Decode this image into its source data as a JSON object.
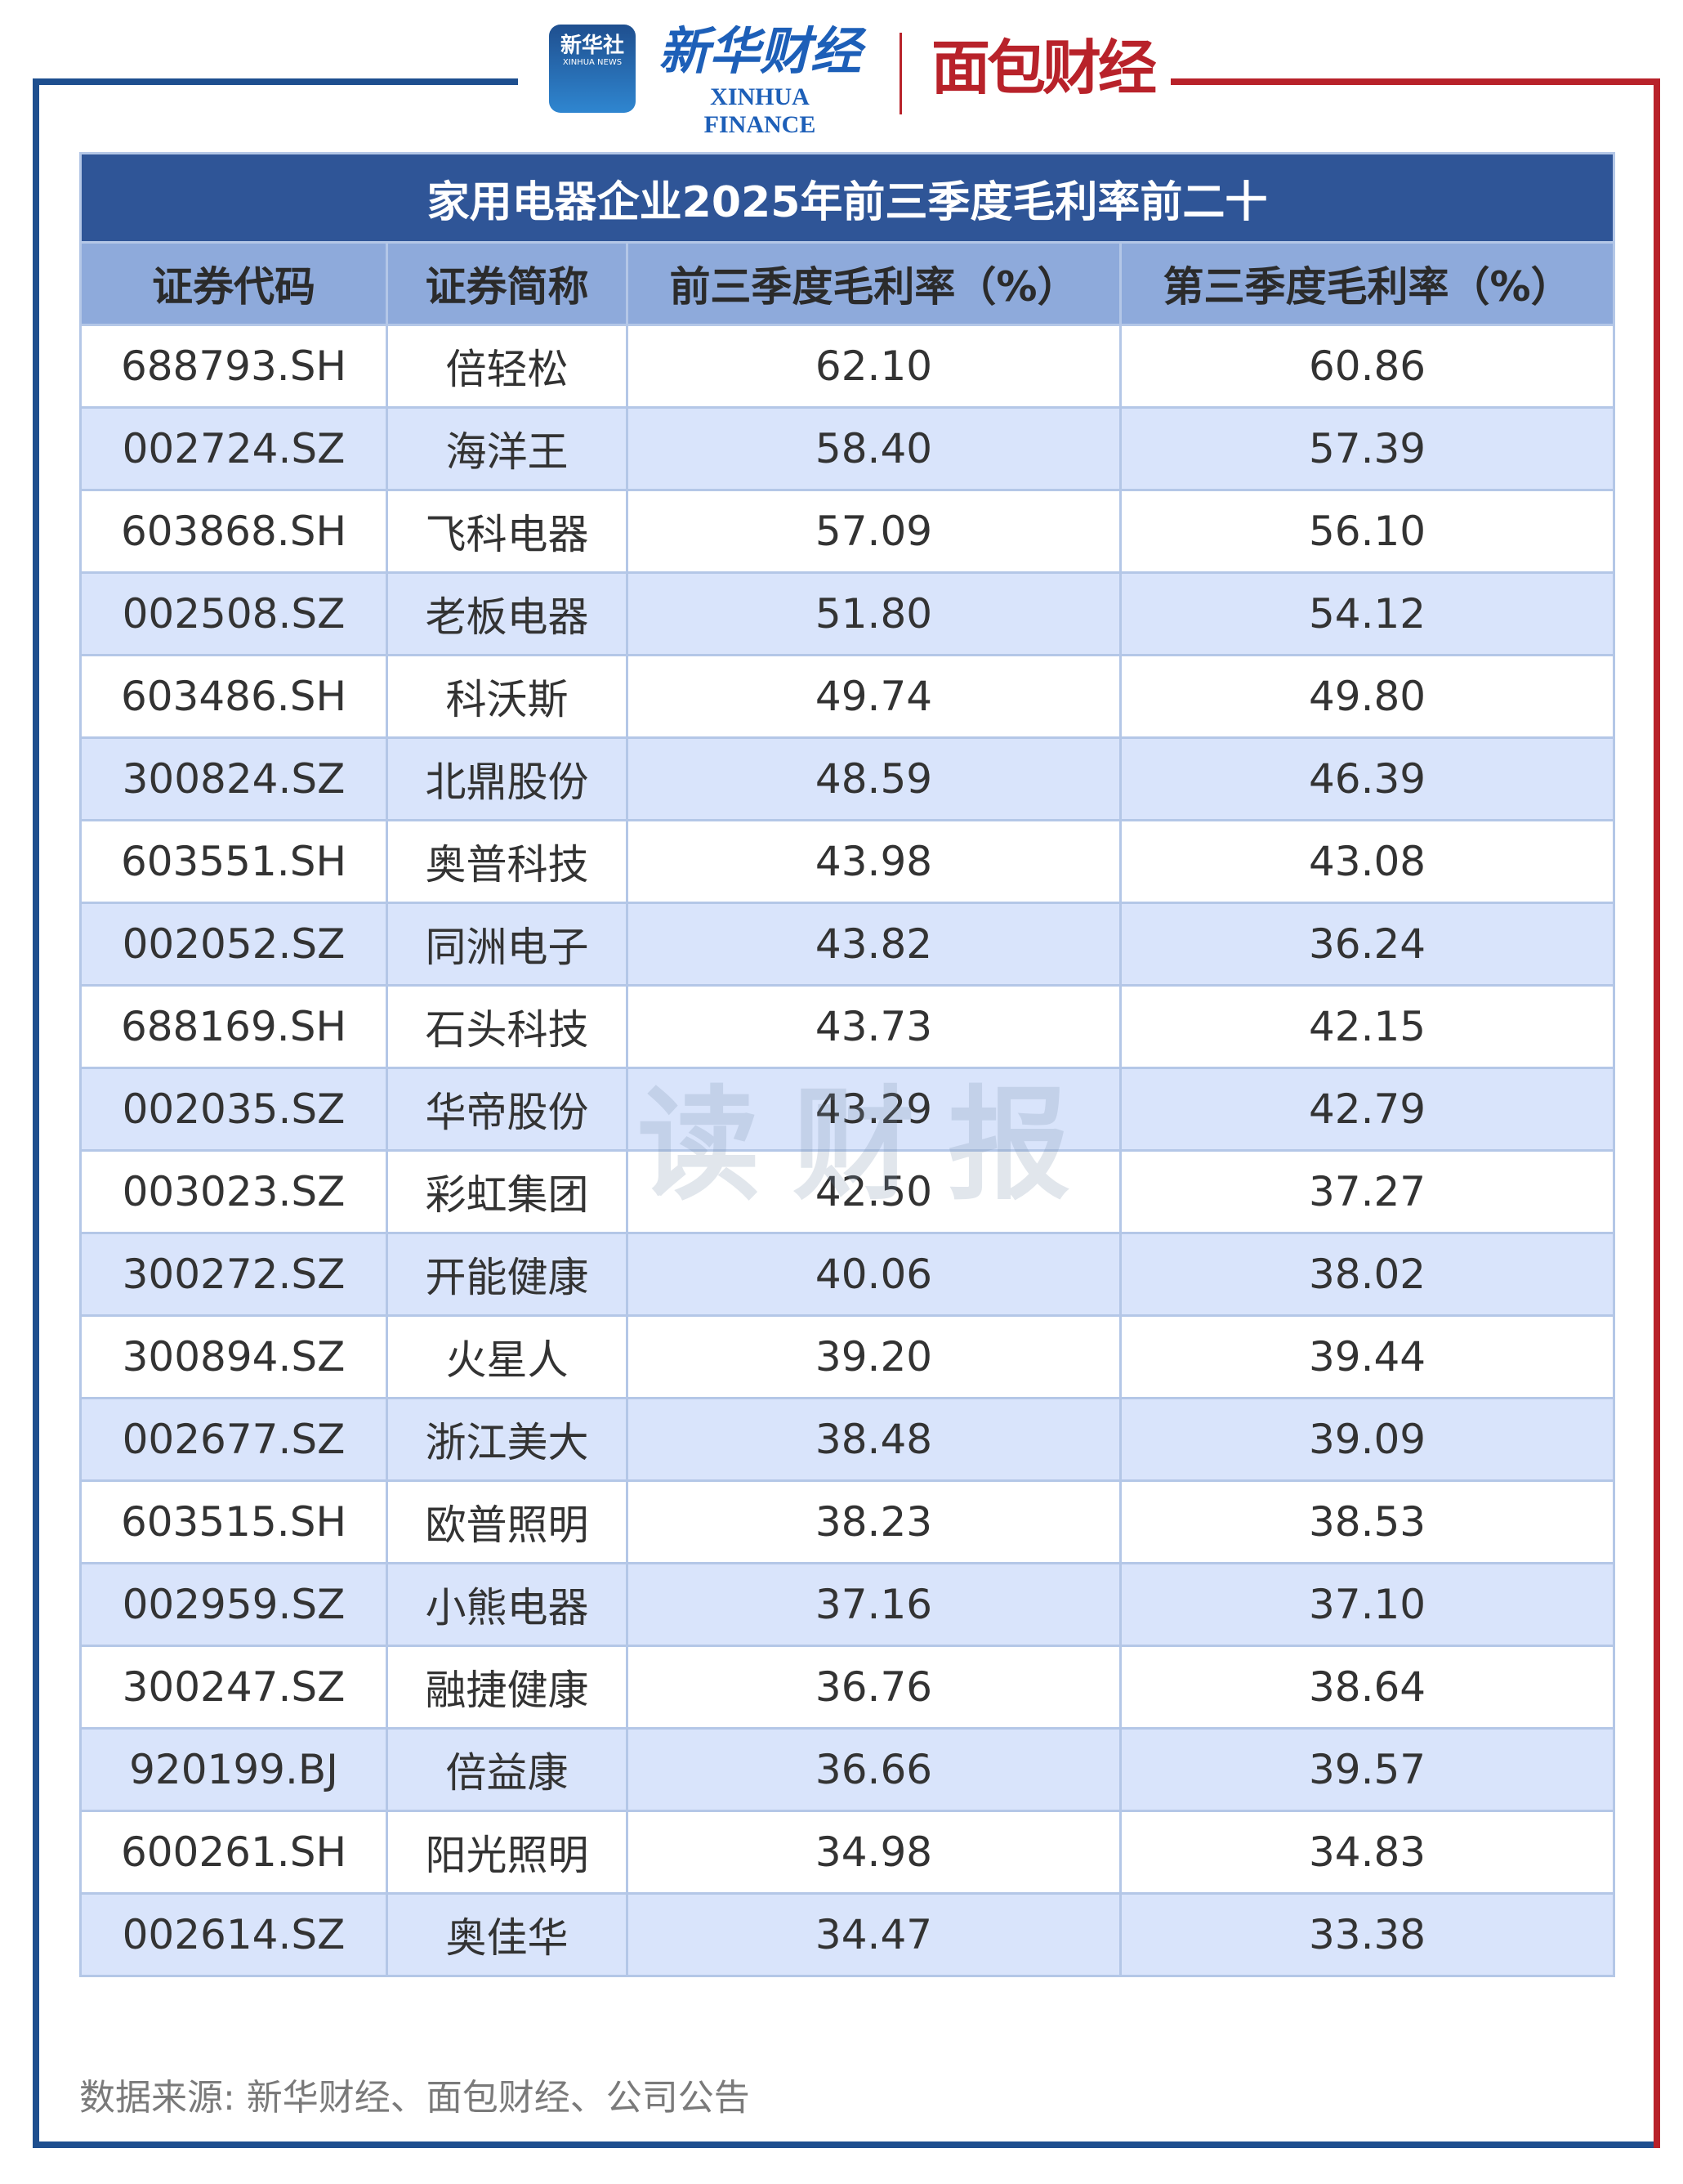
{
  "header": {
    "logo_xinhua_news": "新华社",
    "logo_xinhua_news_en": "XINHUA NEWS",
    "logo_xinhua_finance": "新华财经",
    "logo_xinhua_finance_en": "XINHUA FINANCE",
    "logo_mianbao": "面包财经"
  },
  "colors": {
    "frame_left": "#1e4f8f",
    "frame_right": "#b8222a",
    "title_bg": "#2f5597",
    "header_bg": "#8eaadb",
    "alt_row": "#d9e4fb"
  },
  "table": {
    "title": "家用电器企业2025年前三季度毛利率前二十",
    "columns": [
      "证券代码",
      "证券简称",
      "前三季度毛利率（%）",
      "第三季度毛利率（%）"
    ],
    "rows": [
      [
        "688793.SH",
        "倍轻松",
        "62.10",
        "60.86"
      ],
      [
        "002724.SZ",
        "海洋王",
        "58.40",
        "57.39"
      ],
      [
        "603868.SH",
        "飞科电器",
        "57.09",
        "56.10"
      ],
      [
        "002508.SZ",
        "老板电器",
        "51.80",
        "54.12"
      ],
      [
        "603486.SH",
        "科沃斯",
        "49.74",
        "49.80"
      ],
      [
        "300824.SZ",
        "北鼎股份",
        "48.59",
        "46.39"
      ],
      [
        "603551.SH",
        "奥普科技",
        "43.98",
        "43.08"
      ],
      [
        "002052.SZ",
        "同洲电子",
        "43.82",
        "36.24"
      ],
      [
        "688169.SH",
        "石头科技",
        "43.73",
        "42.15"
      ],
      [
        "002035.SZ",
        "华帝股份",
        "43.29",
        "42.79"
      ],
      [
        "003023.SZ",
        "彩虹集团",
        "42.50",
        "37.27"
      ],
      [
        "300272.SZ",
        "开能健康",
        "40.06",
        "38.02"
      ],
      [
        "300894.SZ",
        "火星人",
        "39.20",
        "39.44"
      ],
      [
        "002677.SZ",
        "浙江美大",
        "38.48",
        "39.09"
      ],
      [
        "603515.SH",
        "欧普照明",
        "38.23",
        "38.53"
      ],
      [
        "002959.SZ",
        "小熊电器",
        "37.16",
        "37.10"
      ],
      [
        "300247.SZ",
        "融捷健康",
        "36.76",
        "38.64"
      ],
      [
        "920199.BJ",
        "倍益康",
        "36.66",
        "39.57"
      ],
      [
        "600261.SH",
        "阳光照明",
        "34.98",
        "34.83"
      ],
      [
        "002614.SZ",
        "奥佳华",
        "34.47",
        "33.38"
      ]
    ]
  },
  "watermark": "读财报",
  "footer": {
    "source": "数据来源: 新华财经、面包财经、公司公告"
  }
}
